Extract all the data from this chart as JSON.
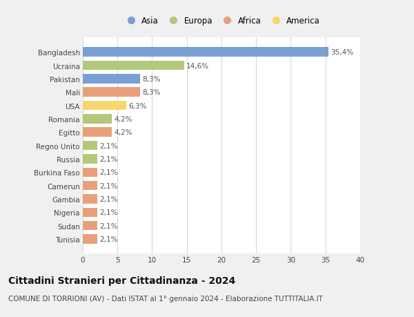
{
  "categories": [
    "Tunisia",
    "Sudan",
    "Nigeria",
    "Gambia",
    "Camerun",
    "Burkina Faso",
    "Russia",
    "Regno Unito",
    "Egitto",
    "Romania",
    "USA",
    "Mali",
    "Pakistan",
    "Ucraina",
    "Bangladesh"
  ],
  "values": [
    2.1,
    2.1,
    2.1,
    2.1,
    2.1,
    2.1,
    2.1,
    2.1,
    4.2,
    4.2,
    6.3,
    8.3,
    8.3,
    14.6,
    35.4
  ],
  "labels": [
    "2,1%",
    "2,1%",
    "2,1%",
    "2,1%",
    "2,1%",
    "2,1%",
    "2,1%",
    "2,1%",
    "4,2%",
    "4,2%",
    "6,3%",
    "8,3%",
    "8,3%",
    "14,6%",
    "35,4%"
  ],
  "colors": [
    "#e8a07a",
    "#e8a07a",
    "#e8a07a",
    "#e8a07a",
    "#e8a07a",
    "#e8a07a",
    "#b3c87a",
    "#b3c87a",
    "#e8a07a",
    "#b3c87a",
    "#f5d76e",
    "#e8a07a",
    "#7a9fd4",
    "#b3c87a",
    "#7a9fd4"
  ],
  "legend_labels": [
    "Asia",
    "Europa",
    "Africa",
    "America"
  ],
  "legend_colors": [
    "#7a9fd4",
    "#b3c87a",
    "#e8a07a",
    "#f5d76e"
  ],
  "title": "Cittadini Stranieri per Cittadinanza - 2024",
  "subtitle": "COMUNE DI TORRIONI (AV) - Dati ISTAT al 1° gennaio 2024 - Elaborazione TUTTITALIA.IT",
  "xlim": [
    0,
    40
  ],
  "xticks": [
    0,
    5,
    10,
    15,
    20,
    25,
    30,
    35,
    40
  ],
  "bg_color": "#f0f0f0",
  "plot_bg_color": "#ffffff",
  "grid_color": "#d8d8d8",
  "bar_height": 0.7,
  "title_fontsize": 10,
  "subtitle_fontsize": 7.5,
  "tick_fontsize": 7.5,
  "label_fontsize": 7.5,
  "legend_fontsize": 8.5
}
